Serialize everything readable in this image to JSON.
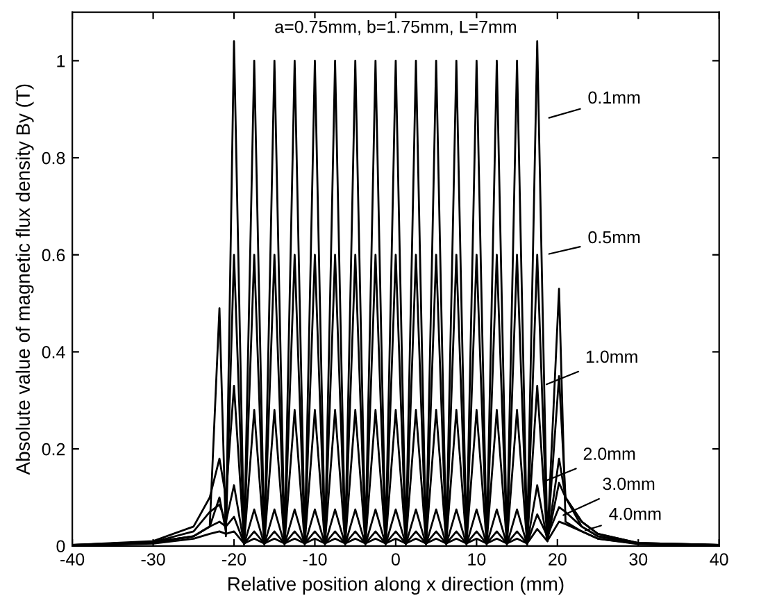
{
  "chart_data": {
    "type": "line",
    "title": "a=0.75mm, b=1.75mm, L=7mm",
    "xlabel": "Relative position along x direction (mm)",
    "ylabel": "Absolute value of magnetic flux density By (T)",
    "x": [
      -40,
      -30,
      -25,
      -23,
      -21.8,
      -21,
      -20,
      -18.75,
      -17.5,
      -16.25,
      -15,
      -13.75,
      -12.5,
      -11.25,
      -10,
      -8.75,
      -7.5,
      -6.25,
      -5,
      -3.75,
      -2.5,
      -1.25,
      0,
      1.25,
      2.5,
      3.75,
      5,
      6.25,
      7.5,
      8.75,
      10,
      11.25,
      12.5,
      13.75,
      15,
      16.25,
      17.5,
      18.75,
      20.2,
      21,
      23,
      25,
      30,
      40
    ],
    "series": [
      {
        "color": "#000000",
        "values": [
          0.002,
          0.008,
          0.02,
          0.04,
          0.49,
          0.02,
          1.04,
          0.005,
          1.0,
          0.005,
          1.0,
          0.005,
          1.0,
          0.005,
          1.0,
          0.005,
          1.0,
          0.005,
          1.0,
          0.005,
          1.0,
          0.005,
          1.0,
          0.005,
          1.0,
          0.005,
          1.0,
          0.005,
          1.0,
          0.005,
          1.0,
          0.005,
          1.0,
          0.005,
          1.0,
          0.005,
          1.04,
          0.01,
          0.53,
          0.05,
          0.03,
          0.015,
          0.005,
          0.002
        ]
      },
      {
        "color": "#000000",
        "values": [
          0.002,
          0.008,
          0.02,
          0.04,
          0.1,
          0.03,
          0.6,
          0.005,
          0.6,
          0.005,
          0.6,
          0.005,
          0.6,
          0.005,
          0.6,
          0.005,
          0.6,
          0.005,
          0.6,
          0.005,
          0.6,
          0.005,
          0.6,
          0.005,
          0.6,
          0.005,
          0.6,
          0.005,
          0.6,
          0.005,
          0.6,
          0.005,
          0.6,
          0.005,
          0.6,
          0.005,
          0.6,
          0.01,
          0.35,
          0.1,
          0.04,
          0.02,
          0.006,
          0.002
        ]
      },
      {
        "color": "#000000",
        "values": [
          0.002,
          0.01,
          0.04,
          0.1,
          0.18,
          0.1,
          0.33,
          0.005,
          0.28,
          0.005,
          0.28,
          0.005,
          0.28,
          0.005,
          0.28,
          0.005,
          0.28,
          0.005,
          0.28,
          0.005,
          0.28,
          0.005,
          0.28,
          0.005,
          0.28,
          0.005,
          0.28,
          0.005,
          0.28,
          0.005,
          0.28,
          0.005,
          0.28,
          0.005,
          0.28,
          0.005,
          0.33,
          0.01,
          0.18,
          0.1,
          0.05,
          0.025,
          0.006,
          0.002
        ]
      },
      {
        "color": "#000000",
        "values": [
          0.001,
          0.008,
          0.03,
          0.07,
          0.085,
          0.05,
          0.125,
          0.003,
          0.075,
          0.003,
          0.075,
          0.003,
          0.075,
          0.003,
          0.075,
          0.003,
          0.075,
          0.003,
          0.075,
          0.003,
          0.075,
          0.003,
          0.075,
          0.003,
          0.075,
          0.003,
          0.075,
          0.003,
          0.075,
          0.003,
          0.075,
          0.003,
          0.075,
          0.003,
          0.075,
          0.003,
          0.125,
          0.01,
          0.13,
          0.1,
          0.05,
          0.025,
          0.006,
          0.002
        ]
      },
      {
        "color": "#000000",
        "values": [
          0.001,
          0.006,
          0.02,
          0.04,
          0.05,
          0.04,
          0.06,
          0.005,
          0.03,
          0.005,
          0.03,
          0.005,
          0.03,
          0.005,
          0.03,
          0.005,
          0.03,
          0.005,
          0.03,
          0.005,
          0.03,
          0.005,
          0.03,
          0.005,
          0.03,
          0.005,
          0.03,
          0.005,
          0.03,
          0.005,
          0.03,
          0.005,
          0.03,
          0.005,
          0.03,
          0.005,
          0.065,
          0.02,
          0.08,
          0.07,
          0.04,
          0.02,
          0.005,
          0.001
        ]
      },
      {
        "color": "#000000",
        "values": [
          0.001,
          0.005,
          0.015,
          0.025,
          0.03,
          0.025,
          0.03,
          0.005,
          0.015,
          0.005,
          0.015,
          0.005,
          0.015,
          0.005,
          0.015,
          0.005,
          0.015,
          0.005,
          0.015,
          0.005,
          0.015,
          0.005,
          0.015,
          0.005,
          0.015,
          0.005,
          0.015,
          0.005,
          0.015,
          0.005,
          0.015,
          0.005,
          0.015,
          0.005,
          0.015,
          0.005,
          0.035,
          0.01,
          0.05,
          0.045,
          0.03,
          0.015,
          0.004,
          0.001
        ]
      }
    ],
    "annotations": [
      {
        "text": "0.1mm",
        "x": 18.5,
        "y": 0.88
      },
      {
        "text": "0.5mm",
        "x": 18.5,
        "y": 0.6
      },
      {
        "text": "1.0mm",
        "x": 18.2,
        "y": 0.33
      },
      {
        "text": "2.0mm",
        "x": 17.9,
        "y": 0.13
      },
      {
        "text": "3.0mm",
        "x": 20.3,
        "y": 0.06
      },
      {
        "text": "4.0mm",
        "x": 23,
        "y": 0.03
      }
    ],
    "xlim": [
      -40,
      40
    ],
    "ylim": [
      0,
      1.1
    ],
    "xticks": [
      -40,
      -30,
      -20,
      -10,
      0,
      10,
      20,
      30,
      40
    ],
    "yticks": [
      0,
      0.2,
      0.4,
      0.6,
      0.8,
      1
    ],
    "grid": false,
    "legend": false,
    "marker": "none",
    "line_style": "solid"
  }
}
